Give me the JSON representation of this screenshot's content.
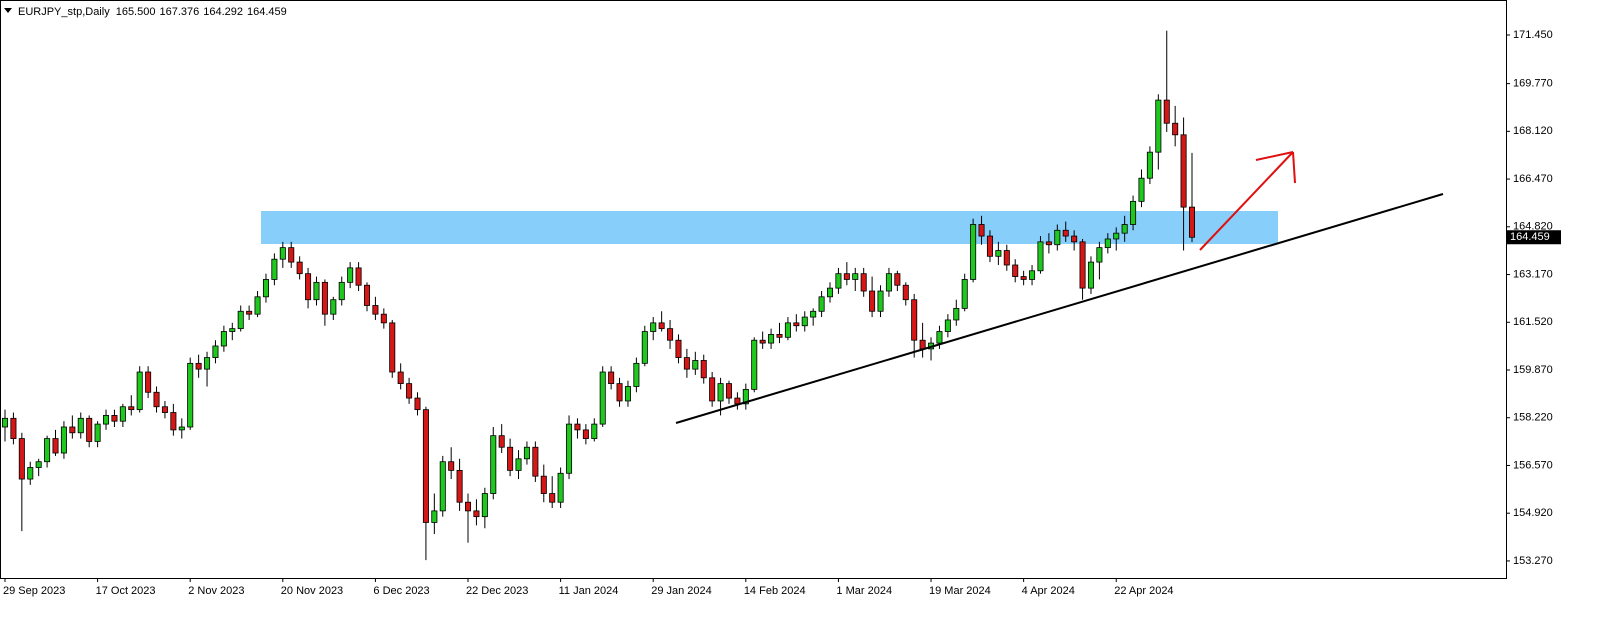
{
  "chart_data": {
    "type": "candlestick",
    "title": "EURJPY_stp,Daily",
    "title_values": [
      "165.500",
      "167.376",
      "164.292",
      "164.459"
    ],
    "categories": [
      "29 Sep 2023",
      null,
      null,
      null,
      null,
      null,
      null,
      null,
      null,
      null,
      null,
      "17 Oct 2023",
      null,
      null,
      null,
      null,
      null,
      null,
      null,
      null,
      null,
      null,
      "2 Nov 2023",
      null,
      null,
      null,
      null,
      null,
      null,
      null,
      null,
      null,
      null,
      "20 Nov 2023",
      null,
      null,
      null,
      null,
      null,
      null,
      null,
      null,
      null,
      null,
      "6 Dec 2023",
      null,
      null,
      null,
      null,
      null,
      null,
      null,
      null,
      null,
      null,
      "22 Dec 2023",
      null,
      null,
      null,
      null,
      null,
      null,
      null,
      null,
      null,
      null,
      "11 Jan 2024",
      null,
      null,
      null,
      null,
      null,
      null,
      null,
      null,
      null,
      null,
      "29 Jan 2024",
      null,
      null,
      null,
      null,
      null,
      null,
      null,
      null,
      null,
      null,
      "14 Feb 2024",
      null,
      null,
      null,
      null,
      null,
      null,
      null,
      null,
      null,
      null,
      "1 Mar 2024",
      null,
      null,
      null,
      null,
      null,
      null,
      null,
      null,
      null,
      null,
      "19 Mar 2024",
      null,
      null,
      null,
      null,
      null,
      null,
      null,
      null,
      null,
      null,
      "4 Apr 2024",
      null,
      null,
      null,
      null,
      null,
      null,
      null,
      null,
      null,
      null,
      "22 Apr 2024",
      null,
      null,
      null,
      null,
      null,
      null,
      null,
      null,
      null
    ],
    "open": [
      157.9,
      158.2,
      157.5,
      156.1,
      156.5,
      156.7,
      157.5,
      157.0,
      157.9,
      157.7,
      158.2,
      157.4,
      158.0,
      158.3,
      158.1,
      158.6,
      158.5,
      159.8,
      159.1,
      158.6,
      158.4,
      157.8,
      157.9,
      160.1,
      159.9,
      160.3,
      160.7,
      161.2,
      161.3,
      161.9,
      161.8,
      162.4,
      163.0,
      163.7,
      164.1,
      163.6,
      163.2,
      162.3,
      162.9,
      161.8,
      162.3,
      162.9,
      163.4,
      162.8,
      162.1,
      161.8,
      161.5,
      159.8,
      159.4,
      158.9,
      158.5,
      154.6,
      155.0,
      156.7,
      156.4,
      155.3,
      155.0,
      154.8,
      155.6,
      157.6,
      157.2,
      156.4,
      156.8,
      157.2,
      156.2,
      155.6,
      155.3,
      156.3,
      158.0,
      157.8,
      157.5,
      158.0,
      159.8,
      159.4,
      158.8,
      159.3,
      160.1,
      161.2,
      161.5,
      161.3,
      160.9,
      160.3,
      159.9,
      160.2,
      159.6,
      158.8,
      159.4,
      158.9,
      158.7,
      159.2,
      160.9,
      160.8,
      161.1,
      161.0,
      161.5,
      161.4,
      161.7,
      161.9,
      162.4,
      162.7,
      163.2,
      163.0,
      163.2,
      162.6,
      161.9,
      162.6,
      163.2,
      162.8,
      162.3,
      160.9,
      160.6,
      160.8,
      161.2,
      161.6,
      162.0,
      163.0,
      164.9,
      164.5,
      163.8,
      164.0,
      163.5,
      163.1,
      163.0,
      163.3,
      164.3,
      164.2,
      164.7,
      164.5,
      164.3,
      162.7,
      163.6,
      164.1,
      164.4,
      164.6,
      164.9,
      165.7,
      166.5,
      167.4,
      169.2,
      168.4,
      168.0,
      165.5
    ],
    "high": [
      158.5,
      158.4,
      157.7,
      156.7,
      156.8,
      157.6,
      157.8,
      158.1,
      158.3,
      158.4,
      158.3,
      158.1,
      158.5,
      158.5,
      158.7,
      159.0,
      160.0,
      160.0,
      159.3,
      158.8,
      158.7,
      158.2,
      160.3,
      160.4,
      160.5,
      160.9,
      161.4,
      161.5,
      162.1,
      162.1,
      162.6,
      163.2,
      163.9,
      164.3,
      164.3,
      163.8,
      163.4,
      163.1,
      163.0,
      162.4,
      163.1,
      163.6,
      163.6,
      162.9,
      162.4,
      162.0,
      161.6,
      160.1,
      159.6,
      159.1,
      158.6,
      155.6,
      156.9,
      157.2,
      156.8,
      155.6,
      155.4,
      155.8,
      157.9,
      158.0,
      157.5,
      157.1,
      157.4,
      157.4,
      156.6,
      156.2,
      156.5,
      158.3,
      158.2,
      158.0,
      158.2,
      160.0,
      160.0,
      159.6,
      159.5,
      160.3,
      161.4,
      161.7,
      161.9,
      161.6,
      161.1,
      160.6,
      160.5,
      160.4,
      159.8,
      159.6,
      159.5,
      159.1,
      159.4,
      161.0,
      161.2,
      161.3,
      161.5,
      161.7,
      161.8,
      161.9,
      162.0,
      162.6,
      162.9,
      163.4,
      163.6,
      163.4,
      163.4,
      163.1,
      162.8,
      163.4,
      163.3,
      162.9,
      162.5,
      161.5,
      161.0,
      161.4,
      161.8,
      162.3,
      163.2,
      165.1,
      165.2,
      164.7,
      164.3,
      164.2,
      163.7,
      163.3,
      163.5,
      164.5,
      164.6,
      164.9,
      165.0,
      164.7,
      164.4,
      163.8,
      164.3,
      164.6,
      164.8,
      165.2,
      165.9,
      166.8,
      167.6,
      169.4,
      171.6,
      169.0,
      168.6,
      167.376
    ],
    "low": [
      157.4,
      157.3,
      154.3,
      155.9,
      156.2,
      156.5,
      156.9,
      156.8,
      157.5,
      157.5,
      157.2,
      157.2,
      157.8,
      157.9,
      157.9,
      158.3,
      158.4,
      158.9,
      158.4,
      158.2,
      157.6,
      157.5,
      157.8,
      159.6,
      159.3,
      160.1,
      160.5,
      160.9,
      161.2,
      161.6,
      161.7,
      162.2,
      162.8,
      163.4,
      163.4,
      163.0,
      162.0,
      162.1,
      161.4,
      161.6,
      162.1,
      162.7,
      162.6,
      161.9,
      161.6,
      161.3,
      159.6,
      159.2,
      158.7,
      158.3,
      153.3,
      154.2,
      154.8,
      156.1,
      155.0,
      153.9,
      154.5,
      154.4,
      155.4,
      157.0,
      156.2,
      156.1,
      156.6,
      156.0,
      155.3,
      155.1,
      155.1,
      156.1,
      157.5,
      157.3,
      157.4,
      157.9,
      159.2,
      158.6,
      158.6,
      159.1,
      160.0,
      160.9,
      161.2,
      160.6,
      160.1,
      159.6,
      159.7,
      159.4,
      158.6,
      158.3,
      158.7,
      158.5,
      158.5,
      159.1,
      160.6,
      160.6,
      160.8,
      160.9,
      161.2,
      161.2,
      161.4,
      161.7,
      162.2,
      162.5,
      162.8,
      162.6,
      162.4,
      161.7,
      161.7,
      162.4,
      162.6,
      162.1,
      160.3,
      160.3,
      160.2,
      160.6,
      161.0,
      161.4,
      161.9,
      162.9,
      164.2,
      163.6,
      163.5,
      163.3,
      162.9,
      162.8,
      162.8,
      163.2,
      163.9,
      164.0,
      164.3,
      164.0,
      162.3,
      162.5,
      163.0,
      163.9,
      164.0,
      164.3,
      164.7,
      165.5,
      166.3,
      166.8,
      168.1,
      167.6,
      164.0,
      164.292
    ],
    "close": [
      158.2,
      157.5,
      156.1,
      156.5,
      156.7,
      157.5,
      157.0,
      157.9,
      157.7,
      158.2,
      157.4,
      158.0,
      158.3,
      158.1,
      158.6,
      158.5,
      159.8,
      159.1,
      158.6,
      158.4,
      157.8,
      157.9,
      160.1,
      159.9,
      160.3,
      160.7,
      161.2,
      161.3,
      161.9,
      161.8,
      162.4,
      163.0,
      163.7,
      164.1,
      163.6,
      163.2,
      162.3,
      162.9,
      161.8,
      162.3,
      162.9,
      163.4,
      162.8,
      162.1,
      161.8,
      161.5,
      159.8,
      159.4,
      158.9,
      158.5,
      154.6,
      155.0,
      156.7,
      156.4,
      155.3,
      155.0,
      154.8,
      155.6,
      157.6,
      157.2,
      156.4,
      156.8,
      157.2,
      156.2,
      155.6,
      155.3,
      156.3,
      158.0,
      157.8,
      157.5,
      158.0,
      159.8,
      159.4,
      158.8,
      159.3,
      160.1,
      161.2,
      161.5,
      161.3,
      160.9,
      160.3,
      159.9,
      160.2,
      159.6,
      158.8,
      159.4,
      158.9,
      158.7,
      159.2,
      160.9,
      160.8,
      161.1,
      161.0,
      161.5,
      161.4,
      161.7,
      161.9,
      162.4,
      162.7,
      163.2,
      163.0,
      163.2,
      162.6,
      161.9,
      162.6,
      163.2,
      162.8,
      162.3,
      160.9,
      160.6,
      160.8,
      161.2,
      161.6,
      162.0,
      163.0,
      164.9,
      164.5,
      163.8,
      164.0,
      163.5,
      163.1,
      163.0,
      163.3,
      164.3,
      164.2,
      164.7,
      164.5,
      164.3,
      162.7,
      163.6,
      164.1,
      164.4,
      164.6,
      164.9,
      165.7,
      166.5,
      167.4,
      169.2,
      168.4,
      168.0,
      165.5,
      164.459
    ],
    "up_color": "#1ec81e",
    "down_color": "#d41717",
    "ylim": [
      152.68,
      172.66
    ],
    "yticks": [
      {
        "value": 171.45,
        "label": "171.450"
      },
      {
        "value": 169.77,
        "label": "169.770"
      },
      {
        "value": 168.12,
        "label": "168.120"
      },
      {
        "value": 166.47,
        "label": "166.470"
      },
      {
        "value": 164.82,
        "label": "164.820"
      },
      {
        "value": 163.17,
        "label": "163.170"
      },
      {
        "value": 161.52,
        "label": "161.520"
      },
      {
        "value": 159.87,
        "label": "159.870"
      },
      {
        "value": 158.22,
        "label": "158.220"
      },
      {
        "value": 156.57,
        "label": "156.570"
      },
      {
        "value": 154.92,
        "label": "154.920"
      },
      {
        "value": 153.27,
        "label": "153.270"
      }
    ],
    "last_price": {
      "value": 164.459,
      "label": "164.459"
    }
  }
}
